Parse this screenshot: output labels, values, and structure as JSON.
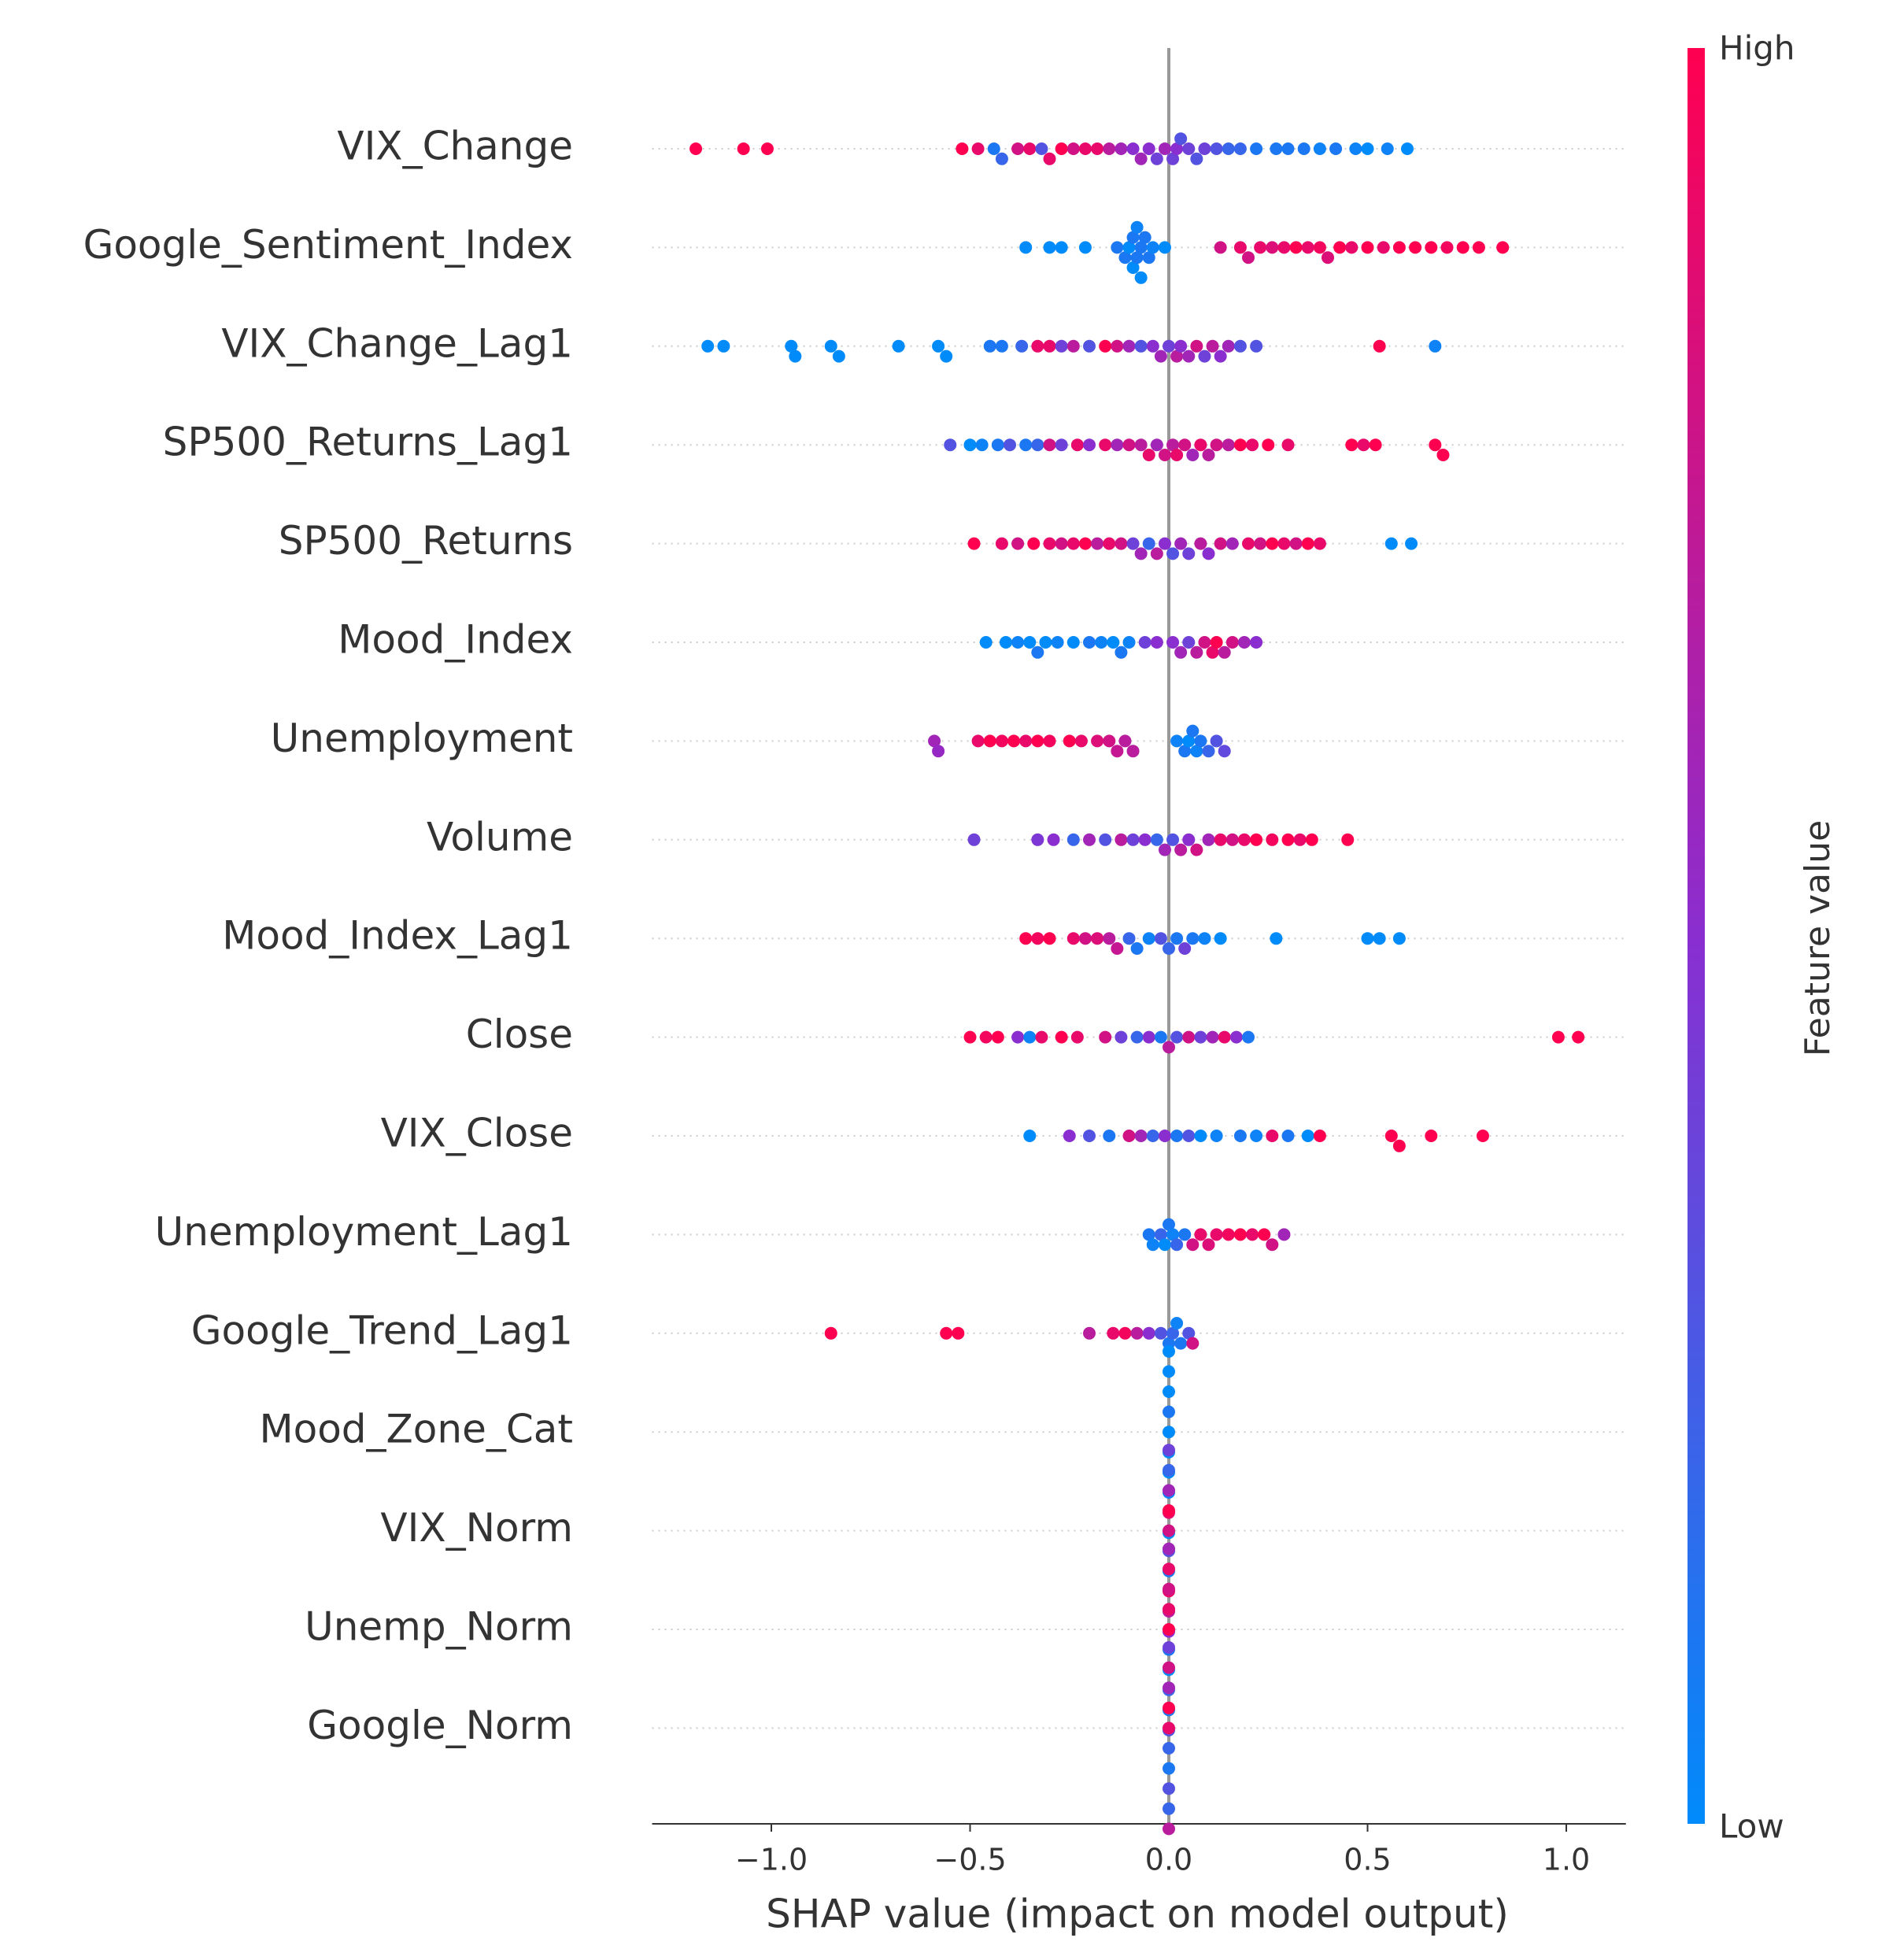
{
  "chart_data": {
    "type": "beeswarm",
    "xlabel": "SHAP value (impact on model output)",
    "xlim": [
      -1.3,
      1.15
    ],
    "xticks": [
      {
        "value": -1,
        "label": "−1.0"
      },
      {
        "value": -0.5,
        "label": "−0.5"
      },
      {
        "value": 0,
        "label": "0.0"
      },
      0.5,
      {
        "value": 1,
        "label": "1.0"
      }
    ],
    "colormap": [
      "#008bfb",
      "#8a2ed0",
      "#ff0051"
    ],
    "colorbar": {
      "label": "Feature value",
      "high": "High",
      "low": "Low"
    },
    "series": [
      {
        "name": "VIX_Change",
        "values": [
          -1.19,
          -1.07,
          -1.01,
          -0.52,
          -0.48,
          -0.44,
          -0.42,
          -0.38,
          -0.35,
          -0.32,
          -0.3,
          -0.27,
          -0.24,
          -0.21,
          -0.18,
          -0.15,
          -0.12,
          -0.09,
          -0.07,
          -0.05,
          -0.03,
          -0.01,
          0.01,
          0.02,
          0.03,
          0.05,
          0.07,
          0.09,
          0.12,
          0.15,
          0.18,
          0.22,
          0.27,
          0.3,
          0.34,
          0.38,
          0.42,
          0.47,
          0.5,
          0.55,
          0.6
        ],
        "feature_values": [
          1,
          1,
          1,
          1,
          0.9,
          0.1,
          0.2,
          0.8,
          0.9,
          0.3,
          0.9,
          1,
          0.8,
          0.9,
          0.9,
          0.7,
          0.6,
          0.5,
          0.6,
          0.5,
          0.4,
          0.6,
          0.4,
          0.5,
          0.3,
          0.4,
          0.3,
          0.4,
          0.3,
          0.2,
          0.2,
          0.1,
          0.1,
          0.1,
          0.1,
          0.05,
          0.1,
          0.05,
          0,
          0.05,
          0
        ]
      },
      {
        "name": "Google_Sentiment_Index",
        "values": [
          -0.36,
          -0.3,
          -0.27,
          -0.21,
          -0.13,
          -0.11,
          -0.1,
          -0.09,
          -0.09,
          -0.08,
          -0.08,
          -0.07,
          -0.07,
          -0.06,
          -0.05,
          -0.04,
          -0.01,
          0.13,
          0.18,
          0.2,
          0.23,
          0.26,
          0.29,
          0.32,
          0.35,
          0.38,
          0.4,
          0.43,
          0.46,
          0.5,
          0.54,
          0.58,
          0.62,
          0.66,
          0.7,
          0.74,
          0.78,
          0.84
        ],
        "feature_values": [
          0,
          0,
          0,
          0,
          0.1,
          0.1,
          0,
          0.1,
          0,
          0.1,
          0.05,
          0.1,
          0,
          0.1,
          0.1,
          0.05,
          0,
          0.8,
          0.9,
          0.8,
          0.9,
          0.85,
          0.9,
          1,
          0.9,
          0.95,
          0.85,
          1,
          0.9,
          1,
          0.9,
          1,
          1,
          1,
          0.95,
          1,
          1,
          1
        ]
      },
      {
        "name": "VIX_Change_Lag1",
        "values": [
          -1.16,
          -1.12,
          -0.95,
          -0.94,
          -0.85,
          -0.83,
          -0.68,
          -0.58,
          -0.56,
          -0.45,
          -0.42,
          -0.37,
          -0.33,
          -0.3,
          -0.27,
          -0.24,
          -0.2,
          -0.16,
          -0.13,
          -0.1,
          -0.07,
          -0.04,
          -0.02,
          0,
          0.02,
          0.03,
          0.05,
          0.07,
          0.09,
          0.11,
          0.13,
          0.15,
          0.18,
          0.22,
          0.53,
          0.67
        ],
        "feature_values": [
          0,
          0,
          0,
          0,
          0,
          0,
          0,
          0,
          0,
          0.1,
          0.1,
          0.2,
          0.9,
          0.9,
          0.4,
          0.7,
          0.3,
          1,
          0.8,
          0.6,
          0.3,
          0.5,
          0.6,
          0.4,
          0.7,
          0.5,
          0.6,
          0.8,
          0.4,
          0.7,
          0.5,
          0.6,
          0.3,
          0.3,
          1,
          0.05
        ]
      },
      {
        "name": "SP500_Returns_Lag1",
        "values": [
          -0.55,
          -0.5,
          -0.47,
          -0.43,
          -0.4,
          -0.36,
          -0.33,
          -0.3,
          -0.27,
          -0.23,
          -0.2,
          -0.16,
          -0.13,
          -0.1,
          -0.07,
          -0.05,
          -0.03,
          -0.01,
          0.01,
          0.02,
          0.04,
          0.06,
          0.08,
          0.1,
          0.12,
          0.15,
          0.18,
          0.21,
          0.25,
          0.3,
          0.46,
          0.49,
          0.52,
          0.67,
          0.69
        ],
        "feature_values": [
          0.3,
          0,
          0.05,
          0.1,
          0.3,
          0.1,
          0.2,
          0.8,
          0.4,
          0.9,
          0.5,
          0.9,
          0.6,
          0.8,
          0.7,
          0.9,
          0.6,
          0.8,
          0.7,
          0.9,
          0.8,
          0.6,
          0.9,
          0.7,
          0.8,
          0.7,
          1,
          0.9,
          1,
          0.9,
          1,
          0.9,
          1,
          1,
          1
        ]
      },
      {
        "name": "SP500_Returns",
        "values": [
          -0.49,
          -0.42,
          -0.38,
          -0.34,
          -0.3,
          -0.27,
          -0.24,
          -0.21,
          -0.18,
          -0.15,
          -0.12,
          -0.09,
          -0.07,
          -0.05,
          -0.03,
          -0.01,
          0.01,
          0.03,
          0.05,
          0.08,
          0.1,
          0.13,
          0.16,
          0.2,
          0.23,
          0.26,
          0.29,
          0.32,
          0.35,
          0.38,
          0.56,
          0.61
        ],
        "feature_values": [
          1,
          0.9,
          0.8,
          1,
          0.9,
          0.8,
          0.9,
          1,
          0.7,
          0.9,
          0.8,
          0.4,
          0.6,
          0.2,
          0.7,
          0.5,
          0.3,
          0.6,
          0.4,
          0.7,
          0.5,
          0.8,
          0.6,
          0.9,
          0.8,
          1,
          0.9,
          0.8,
          1,
          0.9,
          0,
          0
        ]
      },
      {
        "name": "Mood_Index",
        "values": [
          -0.46,
          -0.41,
          -0.38,
          -0.35,
          -0.33,
          -0.31,
          -0.28,
          -0.24,
          -0.2,
          -0.17,
          -0.14,
          -0.12,
          -0.1,
          -0.06,
          -0.03,
          0.01,
          0.03,
          0.05,
          0.07,
          0.09,
          0.11,
          0.12,
          0.14,
          0.16,
          0.19,
          0.22
        ],
        "feature_values": [
          0,
          0,
          0.05,
          0,
          0.1,
          0,
          0.05,
          0,
          0.1,
          0.05,
          0,
          0.1,
          0.05,
          0.4,
          0.5,
          0.5,
          0.6,
          0.4,
          0.7,
          0.8,
          0.9,
          1,
          0.7,
          0.8,
          0.6,
          0.5
        ]
      },
      {
        "name": "Unemployment",
        "values": [
          -0.59,
          -0.58,
          -0.48,
          -0.45,
          -0.42,
          -0.39,
          -0.36,
          -0.33,
          -0.3,
          -0.25,
          -0.22,
          -0.18,
          -0.15,
          -0.13,
          -0.11,
          -0.09,
          0.02,
          0.04,
          0.05,
          0.06,
          0.07,
          0.08,
          0.1,
          0.12,
          0.14
        ],
        "feature_values": [
          0.6,
          0.55,
          0.9,
          1,
          0.95,
          1,
          0.9,
          1,
          0.95,
          1,
          0.9,
          0.85,
          0.8,
          0.75,
          0.7,
          0.7,
          0.05,
          0.1,
          0,
          0.1,
          0.05,
          0.1,
          0.2,
          0.3,
          0.35
        ]
      },
      {
        "name": "Volume",
        "values": [
          -0.49,
          -0.33,
          -0.29,
          -0.24,
          -0.2,
          -0.16,
          -0.12,
          -0.09,
          -0.06,
          -0.03,
          -0.01,
          0.01,
          0.03,
          0.05,
          0.07,
          0.1,
          0.13,
          0.16,
          0.19,
          0.22,
          0.26,
          0.3,
          0.33,
          0.36,
          0.45
        ],
        "feature_values": [
          0.4,
          0.45,
          0.5,
          0.2,
          0.6,
          0.3,
          0.7,
          0.4,
          0.5,
          0.2,
          0.6,
          0.3,
          0.7,
          0.5,
          0.8,
          0.6,
          0.9,
          0.8,
          0.9,
          1,
          0.95,
          1,
          0.9,
          1,
          1
        ]
      },
      {
        "name": "Mood_Index_Lag1",
        "values": [
          -0.36,
          -0.33,
          -0.3,
          -0.24,
          -0.21,
          -0.18,
          -0.15,
          -0.13,
          -0.1,
          -0.08,
          -0.05,
          -0.02,
          0,
          0.02,
          0.04,
          0.06,
          0.09,
          0.13,
          0.27,
          0.5,
          0.53,
          0.58
        ],
        "feature_values": [
          1,
          0.95,
          1,
          0.9,
          0.8,
          0.85,
          0.7,
          0.75,
          0.2,
          0.1,
          0.05,
          0.3,
          0.2,
          0.1,
          0.4,
          0.1,
          0.05,
          0,
          0,
          0,
          0,
          0
        ]
      },
      {
        "name": "Close",
        "values": [
          -0.5,
          -0.46,
          -0.43,
          -0.38,
          -0.35,
          -0.32,
          -0.27,
          -0.23,
          -0.16,
          -0.12,
          -0.08,
          -0.05,
          -0.02,
          0,
          0.02,
          0.05,
          0.08,
          0.11,
          0.14,
          0.17,
          0.2,
          0.98,
          1.03
        ],
        "feature_values": [
          1,
          0.95,
          1,
          0.5,
          0.05,
          0.9,
          1,
          0.9,
          0.8,
          0.4,
          0.2,
          0.5,
          0.1,
          0.7,
          0.3,
          0.8,
          0.4,
          0.6,
          0.9,
          0.5,
          0.1,
          1,
          1
        ]
      },
      {
        "name": "VIX_Close",
        "values": [
          -0.35,
          -0.25,
          -0.2,
          -0.15,
          -0.1,
          -0.07,
          -0.04,
          -0.01,
          0.02,
          0.05,
          0.08,
          0.12,
          0.18,
          0.22,
          0.26,
          0.3,
          0.35,
          0.38,
          0.56,
          0.58,
          0.66,
          0.79
        ],
        "feature_values": [
          0,
          0.5,
          0.3,
          0.1,
          0.8,
          0.6,
          0.2,
          0.5,
          0.1,
          0.3,
          0,
          0.05,
          0.1,
          0.05,
          0.9,
          0.1,
          0,
          1,
          1,
          1,
          1,
          1
        ]
      },
      {
        "name": "Unemployment_Lag1",
        "values": [
          -0.05,
          -0.04,
          -0.02,
          -0.01,
          0,
          0.01,
          0.02,
          0.04,
          0.06,
          0.08,
          0.1,
          0.12,
          0.15,
          0.18,
          0.21,
          0.24,
          0.26,
          0.29
        ],
        "feature_values": [
          0.1,
          0.05,
          0.2,
          0,
          0.1,
          0.05,
          0.2,
          0.1,
          0.8,
          0.9,
          0.85,
          0.9,
          0.95,
          1,
          0.9,
          1,
          0.8,
          0.6
        ]
      },
      {
        "name": "Google_Trend_Lag1",
        "values": [
          -0.85,
          -0.56,
          -0.53,
          -0.2,
          -0.14,
          -0.11,
          -0.08,
          -0.05,
          -0.02,
          0,
          0.01,
          0.02,
          0.03,
          0.05,
          0.06
        ],
        "feature_values": [
          1,
          1,
          1,
          0.7,
          0.9,
          0.95,
          0.7,
          0.5,
          0.3,
          0.1,
          0.2,
          0.05,
          0.1,
          0.3,
          0.8
        ]
      },
      {
        "name": "Mood_Zone_Cat",
        "values": [
          0,
          0,
          0,
          0,
          0,
          0,
          0,
          0,
          0,
          0
        ],
        "feature_values": [
          0,
          0,
          0.1,
          0,
          0,
          0.05,
          0,
          0.9,
          0,
          0
        ]
      },
      {
        "name": "VIX_Norm",
        "values": [
          0,
          0,
          0,
          0,
          0,
          0,
          0,
          0,
          0,
          0
        ],
        "feature_values": [
          0.8,
          0.3,
          1,
          0.1,
          0.6,
          0.9,
          0.2,
          0.7,
          0.4,
          0.5
        ]
      },
      {
        "name": "Unemp_Norm",
        "values": [
          0,
          0,
          0,
          0,
          0,
          0,
          0,
          0,
          0,
          0
        ],
        "feature_values": [
          1,
          0.1,
          0.9,
          0,
          0.8,
          0.2,
          0.9,
          0.1,
          0.6,
          0.3
        ]
      },
      {
        "name": "Google_Norm",
        "values": [
          0,
          0,
          0,
          0,
          0,
          0,
          0,
          0,
          0,
          0
        ],
        "feature_values": [
          0.9,
          0.2,
          1,
          0.1,
          0.6,
          0.3,
          0.8,
          0.2,
          0.4,
          0.7
        ]
      }
    ]
  }
}
